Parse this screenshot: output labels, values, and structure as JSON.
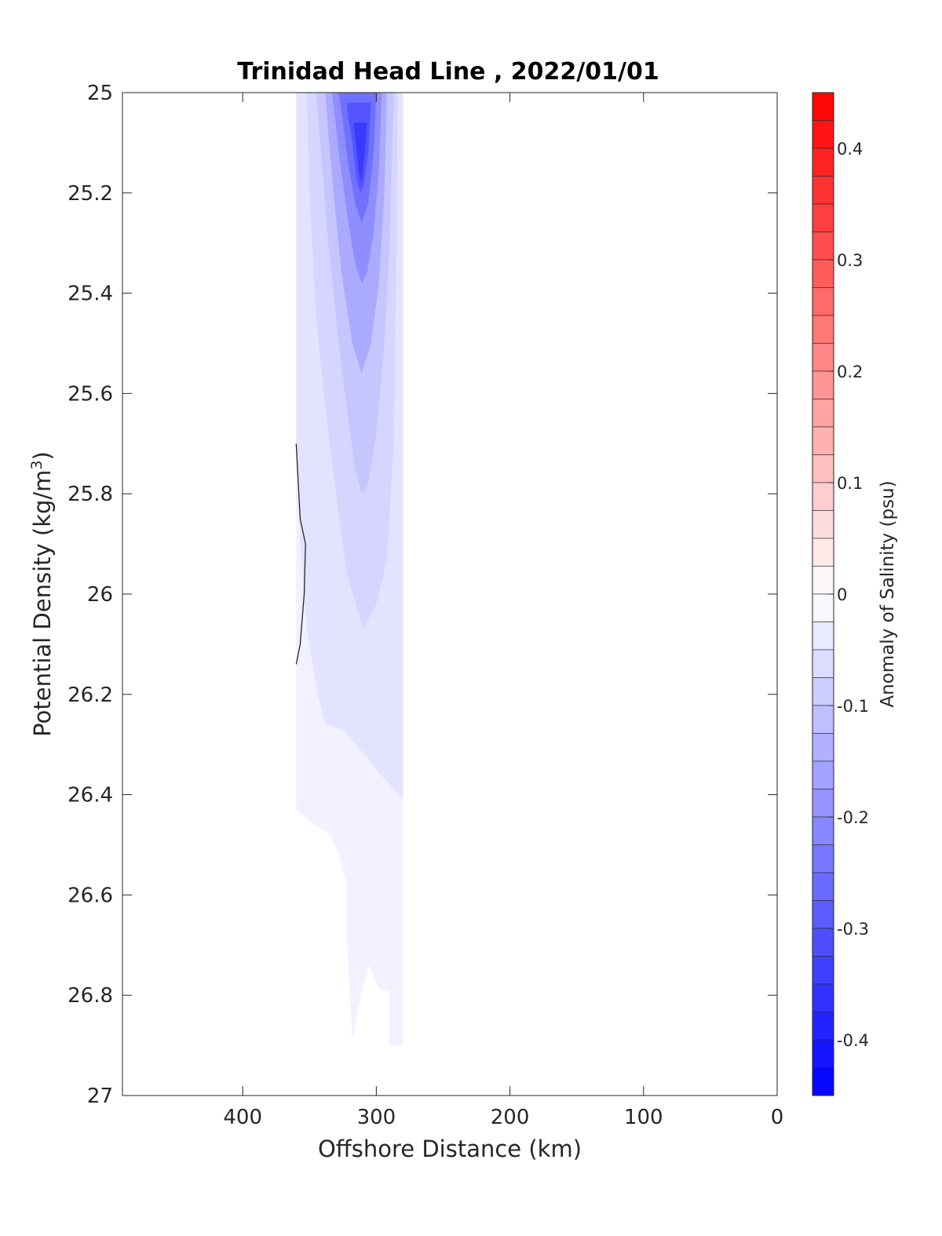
{
  "chart_data": {
    "type": "heatmap",
    "title": "Trinidad Head Line , 2022/01/01",
    "xlabel": "Offshore Distance (km)",
    "ylabel": "Potential Density (kg/m",
    "ylabel_superscript": "3",
    "ylabel_suffix": ")",
    "xlim": [
      490,
      0
    ],
    "ylim": [
      25,
      27
    ],
    "x_reversed": true,
    "y_reversed": true,
    "xticks": [
      400,
      300,
      200,
      100,
      0
    ],
    "yticks": [
      25,
      25.2,
      25.4,
      25.6,
      25.8,
      26,
      26.2,
      26.4,
      26.6,
      26.8,
      27
    ],
    "xtick_labels": [
      "400",
      "300",
      "200",
      "100",
      "0"
    ],
    "ytick_labels": [
      "25",
      "25.2",
      "25.4",
      "25.6",
      "25.8",
      "26",
      "26.2",
      "26.4",
      "26.6",
      "26.8",
      "27"
    ],
    "grid": false,
    "colorbar": {
      "label": "Anomaly of Salinity (psu)",
      "range": [
        -0.45,
        0.45
      ],
      "step": 0.025,
      "ticks": [
        0.4,
        0.3,
        0.2,
        0.1,
        0,
        -0.1,
        -0.2,
        -0.3,
        -0.4
      ],
      "tick_labels": [
        "0.4",
        "0.3",
        "0.2",
        "0.1",
        "0",
        "-0.1",
        "-0.2",
        "-0.3",
        "-0.4"
      ],
      "positive_color": "#ff0000",
      "negative_color": "#0000ff",
      "neutral_color": "#ffffff"
    },
    "data_region": {
      "x_range": [
        360,
        280
      ],
      "y_range": [
        25,
        26.9
      ]
    },
    "contour_levels": [
      {
        "level": -0.025,
        "polygon": [
          [
            360,
            25
          ],
          [
            280,
            25
          ],
          [
            280,
            26.9
          ],
          [
            290,
            26.9
          ],
          [
            290,
            26.79
          ],
          [
            297,
            26.79
          ],
          [
            306,
            26.74
          ],
          [
            314,
            26.83
          ],
          [
            318,
            26.89
          ],
          [
            322,
            26.68
          ],
          [
            322,
            26.58
          ],
          [
            328,
            26.52
          ],
          [
            334,
            26.48
          ],
          [
            346,
            26.46
          ],
          [
            360,
            26.43
          ]
        ]
      },
      {
        "level": -0.05,
        "polygon": [
          [
            360,
            25
          ],
          [
            280,
            25
          ],
          [
            280,
            26.41
          ],
          [
            300,
            26.35
          ],
          [
            312,
            26.31
          ],
          [
            325,
            26.27
          ],
          [
            338,
            26.26
          ],
          [
            344,
            26.2
          ],
          [
            352,
            26.07
          ],
          [
            357,
            25.9
          ],
          [
            360,
            25.7
          ]
        ]
      },
      {
        "level": -0.075,
        "polygon": [
          [
            352,
            25
          ],
          [
            284,
            25
          ],
          [
            285,
            25.35
          ],
          [
            287,
            25.7
          ],
          [
            292,
            25.93
          ],
          [
            300,
            26.02
          ],
          [
            310,
            26.07
          ],
          [
            322,
            25.96
          ],
          [
            335,
            25.7
          ],
          [
            345,
            25.45
          ],
          [
            350,
            25.2
          ]
        ]
      },
      {
        "level": -0.1,
        "polygon": [
          [
            345,
            25
          ],
          [
            287,
            25
          ],
          [
            290,
            25.3
          ],
          [
            294,
            25.5
          ],
          [
            300,
            25.68
          ],
          [
            306,
            25.78
          ],
          [
            311,
            25.8
          ],
          [
            316,
            25.75
          ],
          [
            326,
            25.55
          ],
          [
            336,
            25.3
          ],
          [
            342,
            25.1
          ]
        ]
      },
      {
        "level": -0.15,
        "polygon": [
          [
            338,
            25
          ],
          [
            292,
            25
          ],
          [
            294,
            25.2
          ],
          [
            298,
            25.38
          ],
          [
            304,
            25.5
          ],
          [
            311,
            25.56
          ],
          [
            318,
            25.5
          ],
          [
            326,
            25.36
          ],
          [
            332,
            25.2
          ],
          [
            336,
            25.08
          ]
        ]
      },
      {
        "level": -0.2,
        "polygon": [
          [
            333,
            25
          ],
          [
            296,
            25
          ],
          [
            298,
            25.15
          ],
          [
            302,
            25.28
          ],
          [
            307,
            25.36
          ],
          [
            311,
            25.38
          ],
          [
            316,
            25.34
          ],
          [
            322,
            25.24
          ],
          [
            328,
            25.12
          ]
        ]
      },
      {
        "level": -0.25,
        "polygon": [
          [
            328,
            25
          ],
          [
            300,
            25
          ],
          [
            302,
            25.12
          ],
          [
            306,
            25.22
          ],
          [
            311,
            25.26
          ],
          [
            316,
            25.22
          ],
          [
            321,
            25.14
          ],
          [
            325,
            25.06
          ]
        ]
      },
      {
        "level": -0.3,
        "polygon": [
          [
            322,
            25.02
          ],
          [
            304,
            25.02
          ],
          [
            306,
            25.12
          ],
          [
            309,
            25.18
          ],
          [
            312,
            25.2
          ],
          [
            315,
            25.17
          ],
          [
            318,
            25.1
          ],
          [
            321,
            25.05
          ]
        ]
      },
      {
        "level": -0.35,
        "polygon": [
          [
            317,
            25.06
          ],
          [
            307,
            25.06
          ],
          [
            309,
            25.13
          ],
          [
            311,
            25.18
          ],
          [
            313,
            25.16
          ],
          [
            315,
            25.11
          ]
        ]
      }
    ],
    "zero_contour": [
      [
        360,
        25.7
      ],
      [
        357,
        25.85
      ],
      [
        353,
        25.9
      ],
      [
        354,
        26.0
      ],
      [
        357,
        26.1
      ],
      [
        360,
        26.14
      ]
    ]
  }
}
